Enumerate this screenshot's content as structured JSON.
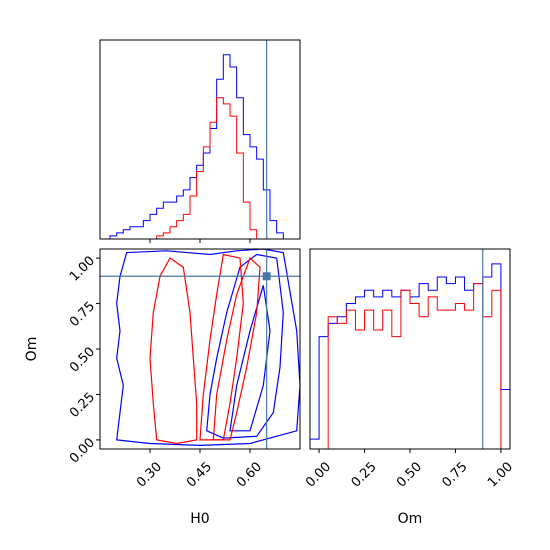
{
  "chart_data": {
    "type": "corner",
    "colors": {
      "blue": "#0000ff",
      "red": "#ff0000",
      "truth": "#4878a8"
    },
    "truth": {
      "H0": 0.65,
      "Om": 0.9
    },
    "parameters": [
      "H0",
      "Om"
    ],
    "xlabels": {
      "H0": "H0",
      "Om": "Om"
    },
    "ylabel": "Om",
    "H0_ticks": [
      0.3,
      0.45,
      0.6
    ],
    "H0_tick_labels": [
      "0.30",
      "0.45",
      "0.60"
    ],
    "Om_ticks": [
      0.0,
      0.25,
      0.5,
      0.75,
      1.0
    ],
    "Om_tick_labels": [
      "0.00",
      "0.25",
      "0.50",
      "0.75",
      "1.00"
    ],
    "H0_range": [
      0.15,
      0.75
    ],
    "Om_range": [
      -0.05,
      1.05
    ],
    "histogram_H0": {
      "bin_edges": [
        0.18,
        0.2,
        0.22,
        0.24,
        0.26,
        0.28,
        0.3,
        0.32,
        0.34,
        0.36,
        0.38,
        0.4,
        0.42,
        0.44,
        0.46,
        0.48,
        0.5,
        0.52,
        0.54,
        0.56,
        0.58,
        0.6,
        0.62,
        0.64,
        0.66,
        0.68,
        0.7,
        0.72
      ],
      "series": [
        {
          "color": "blue",
          "counts": [
            1,
            2,
            3,
            4,
            4,
            6,
            8,
            10,
            12,
            12,
            14,
            16,
            20,
            24,
            28,
            36,
            52,
            60,
            56,
            46,
            34,
            30,
            26,
            16,
            6,
            2,
            0
          ]
        },
        {
          "color": "red",
          "counts": [
            0,
            0,
            0,
            0,
            0,
            0,
            0,
            1,
            2,
            4,
            6,
            8,
            14,
            22,
            30,
            38,
            46,
            44,
            40,
            28,
            12,
            3,
            0,
            0,
            0,
            0,
            0
          ]
        }
      ]
    },
    "histogram_Om": {
      "bin_edges": [
        -0.05,
        0.0,
        0.05,
        0.1,
        0.15,
        0.2,
        0.25,
        0.3,
        0.35,
        0.4,
        0.45,
        0.5,
        0.55,
        0.6,
        0.65,
        0.7,
        0.75,
        0.8,
        0.85,
        0.9,
        0.95,
        1.0,
        1.05
      ],
      "series": [
        {
          "color": "blue",
          "counts": [
            3,
            34,
            38,
            40,
            44,
            46,
            48,
            46,
            48,
            46,
            48,
            46,
            50,
            48,
            52,
            50,
            52,
            48,
            50,
            52,
            56,
            18
          ]
        },
        {
          "color": "red",
          "counts": [
            0,
            0,
            40,
            38,
            42,
            36,
            42,
            36,
            42,
            34,
            48,
            44,
            40,
            46,
            42,
            42,
            44,
            42,
            50,
            40,
            48,
            0
          ]
        }
      ]
    },
    "contours": [
      {
        "color": "blue",
        "level": "outer",
        "points": [
          [
            0.2,
            0.0
          ],
          [
            0.21,
            0.15
          ],
          [
            0.22,
            0.3
          ],
          [
            0.2,
            0.45
          ],
          [
            0.21,
            0.6
          ],
          [
            0.2,
            0.75
          ],
          [
            0.21,
            0.9
          ],
          [
            0.23,
            1.03
          ],
          [
            0.35,
            1.04
          ],
          [
            0.48,
            1.02
          ],
          [
            0.56,
            1.04
          ],
          [
            0.64,
            1.05
          ],
          [
            0.7,
            1.03
          ],
          [
            0.74,
            0.6
          ],
          [
            0.75,
            0.3
          ],
          [
            0.74,
            0.05
          ],
          [
            0.6,
            -0.02
          ],
          [
            0.45,
            -0.03
          ],
          [
            0.3,
            -0.02
          ],
          [
            0.2,
            0.0
          ]
        ]
      },
      {
        "color": "blue",
        "level": "inner",
        "points": [
          [
            0.47,
            0.05
          ],
          [
            0.48,
            0.25
          ],
          [
            0.5,
            0.45
          ],
          [
            0.53,
            0.7
          ],
          [
            0.57,
            0.95
          ],
          [
            0.62,
            1.02
          ],
          [
            0.68,
            1.0
          ],
          [
            0.7,
            0.7
          ],
          [
            0.69,
            0.4
          ],
          [
            0.67,
            0.15
          ],
          [
            0.62,
            0.02
          ],
          [
            0.52,
            0.01
          ],
          [
            0.47,
            0.05
          ]
        ]
      },
      {
        "color": "blue",
        "level": "core",
        "points": [
          [
            0.54,
            0.05
          ],
          [
            0.56,
            0.3
          ],
          [
            0.6,
            0.6
          ],
          [
            0.64,
            0.85
          ],
          [
            0.66,
            0.6
          ],
          [
            0.64,
            0.3
          ],
          [
            0.6,
            0.05
          ],
          [
            0.54,
            0.05
          ]
        ]
      },
      {
        "color": "red",
        "level": "outer",
        "points": [
          [
            0.32,
            0.0
          ],
          [
            0.31,
            0.2
          ],
          [
            0.3,
            0.45
          ],
          [
            0.31,
            0.7
          ],
          [
            0.33,
            0.9
          ],
          [
            0.36,
            1.0
          ],
          [
            0.4,
            0.95
          ],
          [
            0.42,
            0.7
          ],
          [
            0.43,
            0.45
          ],
          [
            0.44,
            0.2
          ],
          [
            0.44,
            0.0
          ],
          [
            0.38,
            -0.02
          ],
          [
            0.32,
            0.0
          ]
        ]
      },
      {
        "color": "red",
        "level": "mid",
        "points": [
          [
            0.45,
            0.0
          ],
          [
            0.46,
            0.25
          ],
          [
            0.48,
            0.55
          ],
          [
            0.5,
            0.8
          ],
          [
            0.52,
            1.02
          ],
          [
            0.57,
            1.0
          ],
          [
            0.58,
            0.75
          ],
          [
            0.56,
            0.45
          ],
          [
            0.54,
            0.2
          ],
          [
            0.52,
            0.0
          ],
          [
            0.45,
            0.0
          ]
        ]
      },
      {
        "color": "red",
        "level": "inner",
        "points": [
          [
            0.49,
            0.0
          ],
          [
            0.5,
            0.25
          ],
          [
            0.53,
            0.55
          ],
          [
            0.56,
            0.8
          ],
          [
            0.6,
            1.0
          ],
          [
            0.63,
            0.95
          ],
          [
            0.62,
            0.7
          ],
          [
            0.59,
            0.4
          ],
          [
            0.56,
            0.15
          ],
          [
            0.54,
            0.0
          ],
          [
            0.49,
            0.0
          ]
        ]
      }
    ]
  }
}
